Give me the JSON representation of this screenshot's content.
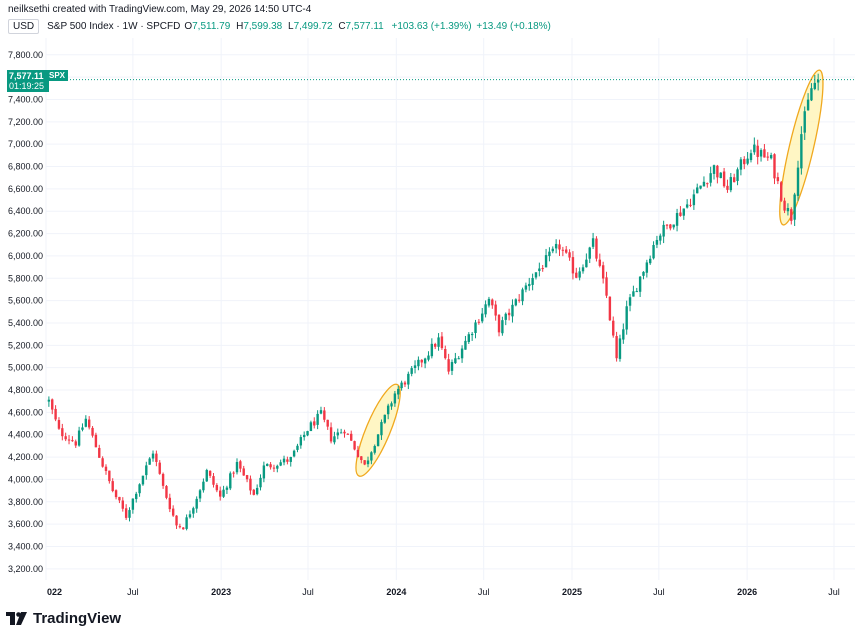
{
  "header": {
    "attribution": "neilksethi created with TradingView.com, May 29, 2026 14:50 UTC-4",
    "currency": "USD",
    "symbol_line": "S&P 500 Index · 1W · SPCFD",
    "ohlc": {
      "o_label": "O",
      "o": "7,511.79",
      "h_label": "H",
      "h": "7,599.38",
      "l_label": "L",
      "l": "7,499.72",
      "c_label": "C",
      "c": "7,577.11",
      "change": "+103.63 (+1.39%)",
      "extra": "+13.49 (+0.18%)"
    }
  },
  "price_tag": {
    "last": "7,577.11",
    "countdown": "01:19:25",
    "symbol": "SPX"
  },
  "footer": {
    "brand": "TradingView"
  },
  "colors": {
    "up": "#089981",
    "down": "#f23645",
    "highlight_fill": "#fff3b0",
    "highlight_stroke": "#f0a81e"
  },
  "chart_data": {
    "type": "candlestick",
    "timeframe": "1W",
    "ylim": [
      3100,
      7950
    ],
    "yticks": [
      "7,800.00",
      "7,600.00",
      "7,400.00",
      "7,200.00",
      "7,000.00",
      "6,800.00",
      "6,600.00",
      "6,400.00",
      "6,200.00",
      "6,000.00",
      "5,800.00",
      "5,600.00",
      "5,400.00",
      "5,200.00",
      "5,000.00",
      "4,800.00",
      "4,600.00",
      "4,400.00",
      "4,200.00",
      "4,000.00",
      "3,800.00",
      "3,600.00",
      "3,400.00",
      "3,200.00"
    ],
    "yticks_values": [
      7800,
      7600,
      7400,
      7200,
      7000,
      6800,
      6600,
      6400,
      6200,
      6000,
      5800,
      5600,
      5400,
      5200,
      5000,
      4800,
      4600,
      4400,
      4200,
      4000,
      3800,
      3600,
      3400,
      3200
    ],
    "xticks": [
      "022",
      "Jul",
      "2023",
      "Jul",
      "2024",
      "Jul",
      "2025",
      "Jul",
      "2026",
      "Jul"
    ],
    "xticks_bold": [
      true,
      false,
      true,
      false,
      true,
      false,
      true,
      false,
      true,
      false
    ],
    "xticks_dates": [
      "2022-01-01",
      "2022-07-01",
      "2023-01-01",
      "2023-07-01",
      "2024-01-01",
      "2024-07-01",
      "2025-01-01",
      "2025-07-01",
      "2026-01-01",
      "2026-07-01"
    ],
    "last_price": 7577.11,
    "series_close_path": [
      [
        "2022-01-07",
        4700
      ],
      [
        "2022-01-28",
        4430
      ],
      [
        "2022-03-04",
        4330
      ],
      [
        "2022-03-25",
        4540
      ],
      [
        "2022-04-29",
        4130
      ],
      [
        "2022-05-20",
        3900
      ],
      [
        "2022-06-17",
        3670
      ],
      [
        "2022-07-08",
        3900
      ],
      [
        "2022-08-12",
        4250
      ],
      [
        "2022-09-02",
        3930
      ],
      [
        "2022-09-30",
        3590
      ],
      [
        "2022-10-14",
        3580
      ],
      [
        "2022-11-04",
        3770
      ],
      [
        "2022-12-02",
        4070
      ],
      [
        "2022-12-30",
        3840
      ],
      [
        "2023-02-03",
        4140
      ],
      [
        "2023-03-10",
        3860
      ],
      [
        "2023-03-31",
        4110
      ],
      [
        "2023-05-26",
        4180
      ],
      [
        "2023-06-30",
        4450
      ],
      [
        "2023-07-28",
        4580
      ],
      [
        "2023-08-18",
        4370
      ],
      [
        "2023-09-15",
        4450
      ],
      [
        "2023-10-27",
        4120
      ],
      [
        "2023-12-29",
        4770
      ],
      [
        "2024-03-29",
        5250
      ],
      [
        "2024-04-19",
        4970
      ],
      [
        "2024-07-12",
        5610
      ],
      [
        "2024-08-02",
        5350
      ],
      [
        "2024-10-11",
        5820
      ],
      [
        "2024-12-06",
        6090
      ],
      [
        "2025-01-10",
        5830
      ],
      [
        "2025-02-14",
        6110
      ],
      [
        "2025-03-14",
        5640
      ],
      [
        "2025-04-04",
        5070
      ],
      [
        "2025-04-25",
        5520
      ],
      [
        "2025-06-27",
        6170
      ],
      [
        "2025-08-29",
        6460
      ],
      [
        "2025-10-24",
        6790
      ],
      [
        "2025-11-21",
        6600
      ],
      [
        "2026-01-09",
        6960
      ],
      [
        "2026-02-20",
        6850
      ],
      [
        "2026-03-20",
        6450
      ],
      [
        "2026-04-03",
        6350
      ],
      [
        "2026-04-24",
        7100
      ],
      [
        "2026-05-15",
        7500
      ],
      [
        "2026-05-29",
        7577
      ]
    ],
    "annotations": [
      {
        "type": "ellipse",
        "from": "2023-10-20",
        "to": "2023-12-29",
        "low": 4080,
        "high": 4800
      },
      {
        "type": "ellipse",
        "from": "2026-03-20",
        "to": "2026-05-29",
        "low": 6330,
        "high": 7610
      }
    ],
    "grid": true
  }
}
